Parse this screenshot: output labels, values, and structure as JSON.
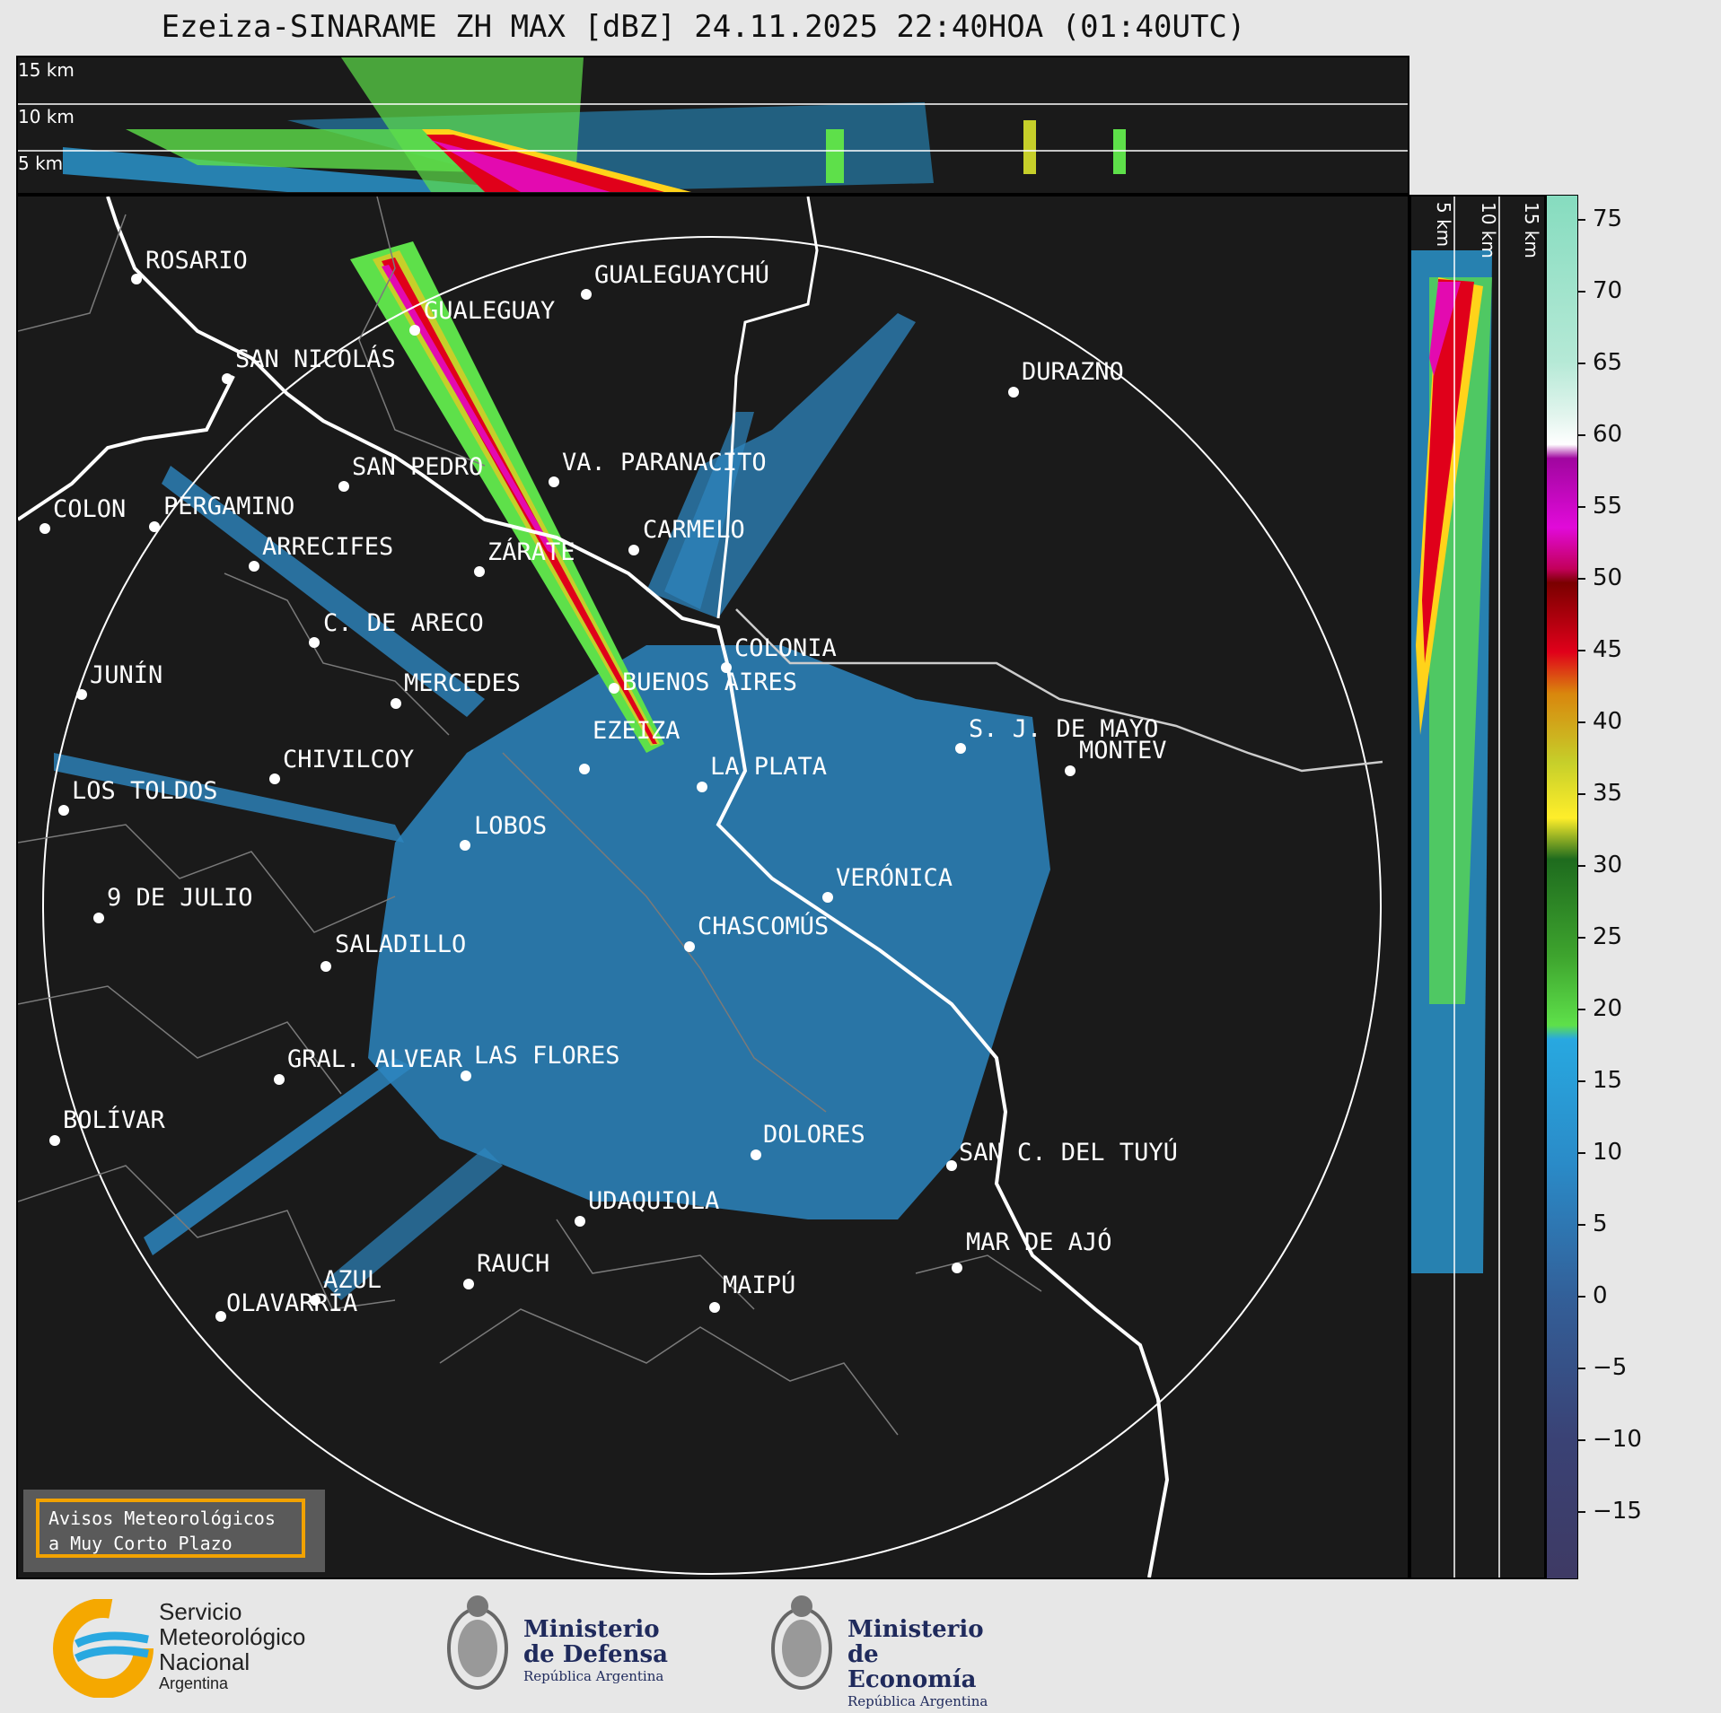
{
  "title": "Ezeiza-SINARAME ZH MAX [dBZ] 24.11.2025 22:40HOA (01:40UTC)",
  "top_panel": {
    "height_labels": [
      "15 km",
      "10 km",
      "5 km"
    ]
  },
  "side_panel": {
    "height_labels": [
      "5 km",
      "10 km",
      "15 km"
    ]
  },
  "colorbar": {
    "ticks": [
      "75",
      "70",
      "65",
      "60",
      "55",
      "50",
      "45",
      "40",
      "35",
      "30",
      "25",
      "20",
      "15",
      "10",
      "5",
      "0",
      "−5",
      "−10",
      "−15"
    ]
  },
  "cities": [
    "ROSARIO",
    "GUALEGUAYCHÚ",
    "GUALEGUAY",
    "SAN NICOLÁS",
    "DURAZNO",
    "SAN PEDRO",
    "VA. PARANACITO",
    "COLON",
    "PERGAMINO",
    "CARMELO",
    "ARRECIFES",
    "ZÁRATE",
    "S. J. DE MAYO",
    "C. DE ARECO",
    "COLONIA",
    "BUENOS AIRES",
    "JUNÍN",
    "MERCEDES",
    "EZEIZA",
    "MONTEV",
    "CHIVILCOY",
    "LA PLATA",
    "LOS TOLDOS",
    "LOBOS",
    "VERÓNICA",
    "9 DE JULIO",
    "CHASCOMÚS",
    "SALADILLO",
    "GRAL. ALVEAR",
    "LAS FLORES",
    "BOLÍVAR",
    "DOLORES",
    "SAN C. DEL TUYÚ",
    "UDAQUIOLA",
    "MAR DE AJÓ",
    "AZUL",
    "RAUCH",
    "OLAVARRÍA",
    "MAIPÚ"
  ],
  "warning": {
    "line1": "Avisos Meteorológicos",
    "line2": "a Muy Corto Plazo"
  },
  "logos": {
    "smn": {
      "line1": "Servicio",
      "line2": "Meteorológico",
      "line3": "Nacional",
      "line4": "Argentina"
    },
    "defensa": {
      "line1": "Ministerio",
      "line2": "de Defensa",
      "line3": "República Argentina"
    },
    "economia": {
      "line1": "Ministerio",
      "line2": "de Economía",
      "line3": "República Argentina"
    }
  }
}
